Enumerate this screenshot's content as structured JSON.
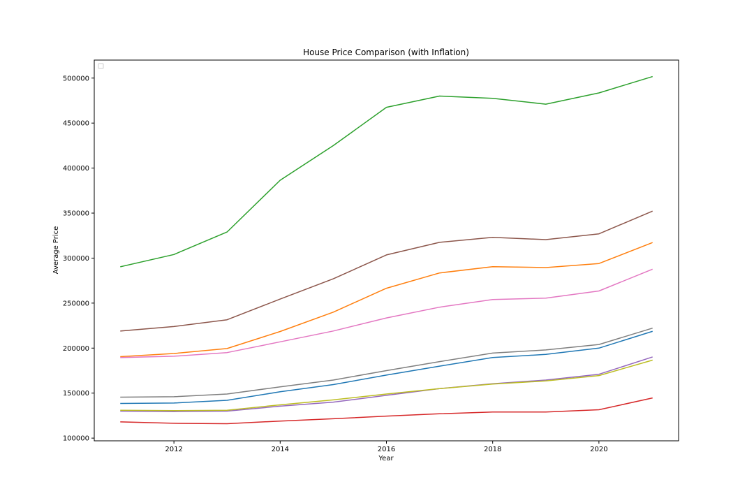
{
  "chart_data": {
    "type": "line",
    "title": "House Price Comparison (with Inflation)",
    "xlabel": "Year",
    "ylabel": "Average Price",
    "xlim": [
      2010.5,
      2021.5
    ],
    "ylim": [
      97000,
      520000
    ],
    "xticks": [
      2012,
      2014,
      2016,
      2018,
      2020
    ],
    "yticks": [
      100000,
      150000,
      200000,
      250000,
      300000,
      350000,
      400000,
      450000,
      500000
    ],
    "grid": false,
    "legend": "upper left (empty)",
    "x": [
      2011,
      2012,
      2013,
      2014,
      2015,
      2016,
      2017,
      2018,
      2019,
      2020,
      2021
    ],
    "series": [
      {
        "color": "#1f77b4",
        "values": [
          138500,
          139000,
          142000,
          151500,
          159500,
          170000,
          180000,
          189500,
          193000,
          200000,
          218500
        ]
      },
      {
        "color": "#ff7f0e",
        "values": [
          190500,
          194000,
          199500,
          218500,
          240000,
          266500,
          283500,
          290500,
          289500,
          294000,
          317000
        ]
      },
      {
        "color": "#2ca02c",
        "values": [
          290500,
          304000,
          329000,
          386500,
          425000,
          467500,
          480000,
          477500,
          471000,
          483500,
          501500
        ]
      },
      {
        "color": "#d62728",
        "values": [
          118000,
          116500,
          116000,
          119000,
          121500,
          124500,
          127000,
          129000,
          129000,
          131500,
          144500
        ]
      },
      {
        "color": "#9467bd",
        "values": [
          130000,
          129500,
          130000,
          135500,
          140000,
          147500,
          155000,
          160500,
          164500,
          171000,
          190000
        ]
      },
      {
        "color": "#8c564b",
        "values": [
          219000,
          224000,
          231500,
          254500,
          277000,
          303500,
          317500,
          323000,
          320500,
          327000,
          352000
        ]
      },
      {
        "color": "#e377c2",
        "values": [
          189500,
          191000,
          195000,
          207000,
          219000,
          233500,
          245500,
          254000,
          255500,
          263500,
          287500
        ]
      },
      {
        "color": "#7f7f7f",
        "values": [
          145500,
          146000,
          149000,
          157000,
          164500,
          175000,
          185000,
          194500,
          198000,
          204000,
          222000
        ]
      },
      {
        "color": "#bcbd22",
        "values": [
          131000,
          130500,
          131000,
          137000,
          142500,
          149000,
          155000,
          160000,
          163500,
          169500,
          186500
        ]
      }
    ]
  }
}
